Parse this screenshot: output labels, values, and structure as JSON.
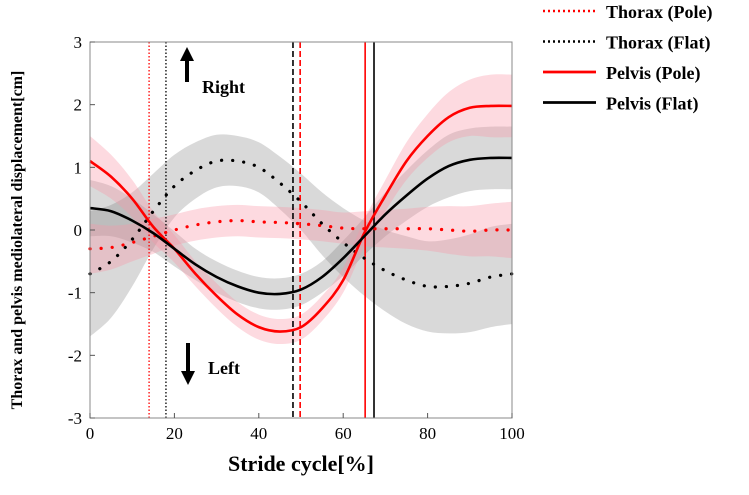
{
  "chart_data": {
    "type": "line",
    "xlabel": "Stride cycle[%]",
    "ylabel": "Thorax and pelvis mediolateral displacement[cm]",
    "xlim": [
      0,
      100
    ],
    "ylim": [
      -3,
      3
    ],
    "xticks": [
      0,
      20,
      40,
      60,
      80,
      100
    ],
    "yticks": [
      -3,
      -2,
      -1,
      0,
      1,
      2,
      3
    ],
    "grid": false,
    "legend_position": "outside-top-right",
    "annotations": {
      "up": "Right",
      "down": "Left"
    },
    "x": [
      0,
      5,
      10,
      15,
      20,
      25,
      30,
      35,
      40,
      45,
      50,
      55,
      60,
      65,
      70,
      75,
      80,
      85,
      90,
      95,
      100
    ],
    "series": [
      {
        "name": "Thorax (Pole)",
        "color": "#ff0000",
        "style": "dotted",
        "values": [
          -0.3,
          -0.28,
          -0.2,
          -0.1,
          0.0,
          0.08,
          0.13,
          0.15,
          0.13,
          0.12,
          0.1,
          0.07,
          0.03,
          0.02,
          0.02,
          0.02,
          0.02,
          0.0,
          -0.02,
          0.0,
          0.0
        ],
        "sd": [
          0.4,
          0.35,
          0.3,
          0.28,
          0.25,
          0.25,
          0.25,
          0.25,
          0.25,
          0.25,
          0.25,
          0.25,
          0.25,
          0.28,
          0.3,
          0.32,
          0.35,
          0.38,
          0.4,
          0.42,
          0.45
        ],
        "event_x": 14
      },
      {
        "name": "Thorax (Flat)",
        "color": "#000000",
        "style": "dotted",
        "values": [
          -0.7,
          -0.5,
          -0.15,
          0.3,
          0.7,
          0.95,
          1.1,
          1.1,
          1.0,
          0.75,
          0.45,
          0.1,
          -0.2,
          -0.45,
          -0.65,
          -0.8,
          -0.9,
          -0.9,
          -0.85,
          -0.75,
          -0.7
        ],
        "sd": [
          1.0,
          0.9,
          0.75,
          0.6,
          0.5,
          0.45,
          0.42,
          0.4,
          0.4,
          0.42,
          0.45,
          0.5,
          0.55,
          0.6,
          0.65,
          0.7,
          0.72,
          0.75,
          0.78,
          0.8,
          0.8
        ],
        "event_x": 18
      },
      {
        "name": "Pelvis (Pole)",
        "color": "#ff0000",
        "style": "solid",
        "values": [
          1.1,
          0.85,
          0.5,
          0.05,
          -0.3,
          -0.7,
          -1.05,
          -1.35,
          -1.55,
          -1.62,
          -1.55,
          -1.25,
          -0.8,
          -0.05,
          0.55,
          1.1,
          1.5,
          1.8,
          1.95,
          1.98,
          1.98
        ],
        "sd": [
          0.4,
          0.35,
          0.3,
          0.25,
          0.22,
          0.2,
          0.2,
          0.2,
          0.2,
          0.2,
          0.2,
          0.2,
          0.2,
          0.22,
          0.25,
          0.3,
          0.35,
          0.4,
          0.45,
          0.5,
          0.5
        ],
        "event_x": [
          49.8,
          65.2
        ]
      },
      {
        "name": "Pelvis (Flat)",
        "color": "#000000",
        "style": "solid",
        "values": [
          0.35,
          0.3,
          0.15,
          -0.05,
          -0.3,
          -0.55,
          -0.75,
          -0.9,
          -1.0,
          -1.02,
          -0.95,
          -0.75,
          -0.45,
          -0.1,
          0.25,
          0.55,
          0.82,
          1.02,
          1.12,
          1.15,
          1.15
        ],
        "sd": [
          0.45,
          0.4,
          0.35,
          0.3,
          0.28,
          0.25,
          0.25,
          0.25,
          0.25,
          0.25,
          0.25,
          0.25,
          0.28,
          0.3,
          0.35,
          0.4,
          0.45,
          0.5,
          0.5,
          0.5,
          0.5
        ],
        "event_x": [
          48.1,
          67.3
        ]
      }
    ]
  }
}
